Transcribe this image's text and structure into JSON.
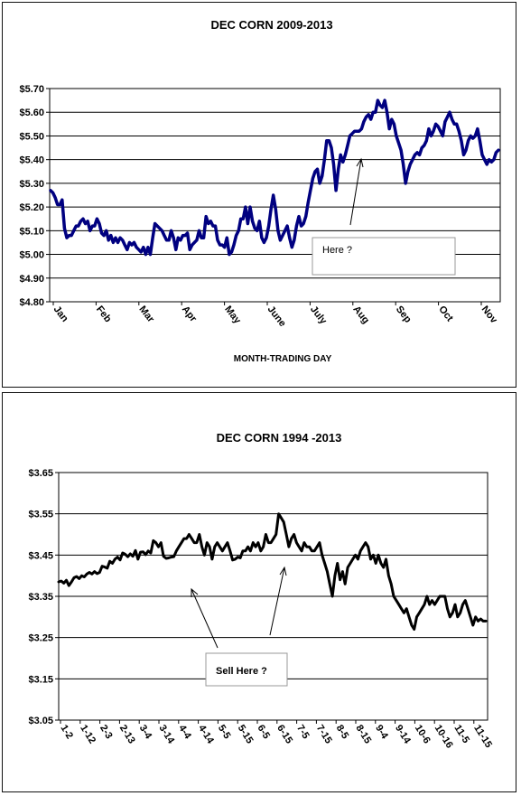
{
  "chart_data": [
    {
      "type": "line",
      "title": "DEC CORN 2009-2013",
      "xlabel": "MONTH-TRADING DAY",
      "ylabel": "",
      "ylim": [
        4.8,
        5.7
      ],
      "y_ticks": [
        "$5.70",
        "$5.60",
        "$5.50",
        "$5.40",
        "$5.30",
        "$5.20",
        "$5.10",
        "$5.00",
        "$4.90",
        "$4.80"
      ],
      "y_tick_values": [
        5.7,
        5.6,
        5.5,
        5.4,
        5.3,
        5.2,
        5.1,
        5.0,
        4.9,
        4.8
      ],
      "x_ticks": [
        "Jan",
        "Feb",
        "Mar",
        "Apr",
        "May",
        "June",
        "July",
        "Aug",
        "Sep",
        "Oct",
        "Nov"
      ],
      "grid": true,
      "line_color": "#000080",
      "annotation_text": "Here ?",
      "series": [
        {
          "values": [
            5.27,
            5.26,
            5.24,
            5.21,
            5.21,
            5.23,
            5.11,
            5.07,
            5.08,
            5.08,
            5.1,
            5.12,
            5.12,
            5.14,
            5.15,
            5.13,
            5.14,
            5.1,
            5.12,
            5.12,
            5.15,
            5.13,
            5.09,
            5.08,
            5.1,
            5.06,
            5.08,
            5.05,
            5.07,
            5.05,
            5.07,
            5.06,
            5.04,
            5.02,
            5.05,
            5.04,
            5.05,
            5.03,
            5.02,
            5.01,
            5.03,
            5.0,
            5.03,
            5.0,
            5.07,
            5.13,
            5.12,
            5.11,
            5.1,
            5.08,
            5.06,
            5.06,
            5.1,
            5.07,
            5.02,
            5.07,
            5.06,
            5.08,
            5.08,
            5.09,
            5.02,
            5.04,
            5.05,
            5.06,
            5.1,
            5.07,
            5.07,
            5.16,
            5.13,
            5.14,
            5.12,
            5.12,
            5.06,
            5.04,
            5.04,
            5.03,
            5.07,
            5.0,
            5.01,
            5.04,
            5.08,
            5.1,
            5.15,
            5.15,
            5.2,
            5.13,
            5.2,
            5.14,
            5.11,
            5.1,
            5.14,
            5.07,
            5.05,
            5.07,
            5.12,
            5.19,
            5.25,
            5.19,
            5.1,
            5.06,
            5.08,
            5.1,
            5.12,
            5.07,
            5.03,
            5.06,
            5.12,
            5.16,
            5.12,
            5.13,
            5.16,
            5.22,
            5.27,
            5.32,
            5.35,
            5.36,
            5.3,
            5.33,
            5.4,
            5.48,
            5.48,
            5.45,
            5.38,
            5.27,
            5.36,
            5.42,
            5.39,
            5.42,
            5.46,
            5.5,
            5.51,
            5.52,
            5.52,
            5.52,
            5.53,
            5.56,
            5.58,
            5.59,
            5.57,
            5.6,
            5.6,
            5.65,
            5.63,
            5.62,
            5.65,
            5.6,
            5.53,
            5.57,
            5.55,
            5.5,
            5.47,
            5.44,
            5.38,
            5.3,
            5.35,
            5.38,
            5.4,
            5.42,
            5.43,
            5.42,
            5.45,
            5.46,
            5.48,
            5.53,
            5.5,
            5.52,
            5.55,
            5.54,
            5.52,
            5.5,
            5.56,
            5.58,
            5.6,
            5.57,
            5.55,
            5.55,
            5.52,
            5.48,
            5.42,
            5.44,
            5.48,
            5.5,
            5.49,
            5.5,
            5.53,
            5.48,
            5.42,
            5.4,
            5.38,
            5.4,
            5.39,
            5.4,
            5.43,
            5.44
          ]
        }
      ]
    },
    {
      "type": "line",
      "title": "DEC CORN 1994 -2013",
      "xlabel": "",
      "ylabel": "",
      "ylim": [
        3.05,
        3.65
      ],
      "y_ticks": [
        "$3.65",
        "$3.55",
        "$3.45",
        "$3.35",
        "$3.25",
        "$3.15",
        "$3.05"
      ],
      "y_tick_values": [
        3.65,
        3.55,
        3.45,
        3.35,
        3.25,
        3.15,
        3.05
      ],
      "x_ticks": [
        "1-2",
        "1-12",
        "2-3",
        "2-13",
        "3-4",
        "3-14",
        "4-4",
        "4-14",
        "5-5",
        "5-15",
        "6-5",
        "6-15",
        "7-5",
        "7-15",
        "8-5",
        "8-15",
        "9-4",
        "9-14",
        "10-6",
        "10-16",
        "11-5",
        "11-15"
      ],
      "grid": true,
      "line_color": "#000000",
      "annotation_text": "Sell Here ?",
      "series": [
        {
          "values": [
            3.385,
            3.387,
            3.382,
            3.389,
            3.376,
            3.385,
            3.395,
            3.398,
            3.393,
            3.4,
            3.397,
            3.404,
            3.408,
            3.404,
            3.41,
            3.405,
            3.408,
            3.423,
            3.421,
            3.418,
            3.435,
            3.43,
            3.44,
            3.445,
            3.438,
            3.455,
            3.452,
            3.446,
            3.453,
            3.447,
            3.461,
            3.44,
            3.457,
            3.458,
            3.451,
            3.46,
            3.455,
            3.485,
            3.48,
            3.47,
            3.48,
            3.447,
            3.442,
            3.443,
            3.445,
            3.446,
            3.46,
            3.47,
            3.48,
            3.49,
            3.49,
            3.5,
            3.49,
            3.48,
            3.48,
            3.5,
            3.47,
            3.45,
            3.48,
            3.47,
            3.44,
            3.47,
            3.48,
            3.47,
            3.46,
            3.47,
            3.48,
            3.46,
            3.438,
            3.44,
            3.445,
            3.443,
            3.46,
            3.46,
            3.47,
            3.46,
            3.48,
            3.47,
            3.48,
            3.46,
            3.47,
            3.5,
            3.48,
            3.48,
            3.49,
            3.5,
            3.55,
            3.54,
            3.53,
            3.5,
            3.47,
            3.49,
            3.5,
            3.48,
            3.47,
            3.46,
            3.48,
            3.47,
            3.47,
            3.46,
            3.46,
            3.47,
            3.48,
            3.45,
            3.43,
            3.41,
            3.38,
            3.35,
            3.4,
            3.43,
            3.39,
            3.41,
            3.38,
            3.42,
            3.43,
            3.44,
            3.45,
            3.44,
            3.46,
            3.47,
            3.48,
            3.47,
            3.44,
            3.45,
            3.43,
            3.45,
            3.43,
            3.42,
            3.44,
            3.4,
            3.38,
            3.35,
            3.34,
            3.33,
            3.32,
            3.31,
            3.32,
            3.3,
            3.28,
            3.27,
            3.3,
            3.31,
            3.32,
            3.33,
            3.35,
            3.33,
            3.34,
            3.33,
            3.34,
            3.35,
            3.35,
            3.35,
            3.32,
            3.3,
            3.31,
            3.33,
            3.3,
            3.31,
            3.33,
            3.34,
            3.32,
            3.3,
            3.28,
            3.3,
            3.29,
            3.295,
            3.29,
            3.29
          ]
        }
      ]
    }
  ]
}
